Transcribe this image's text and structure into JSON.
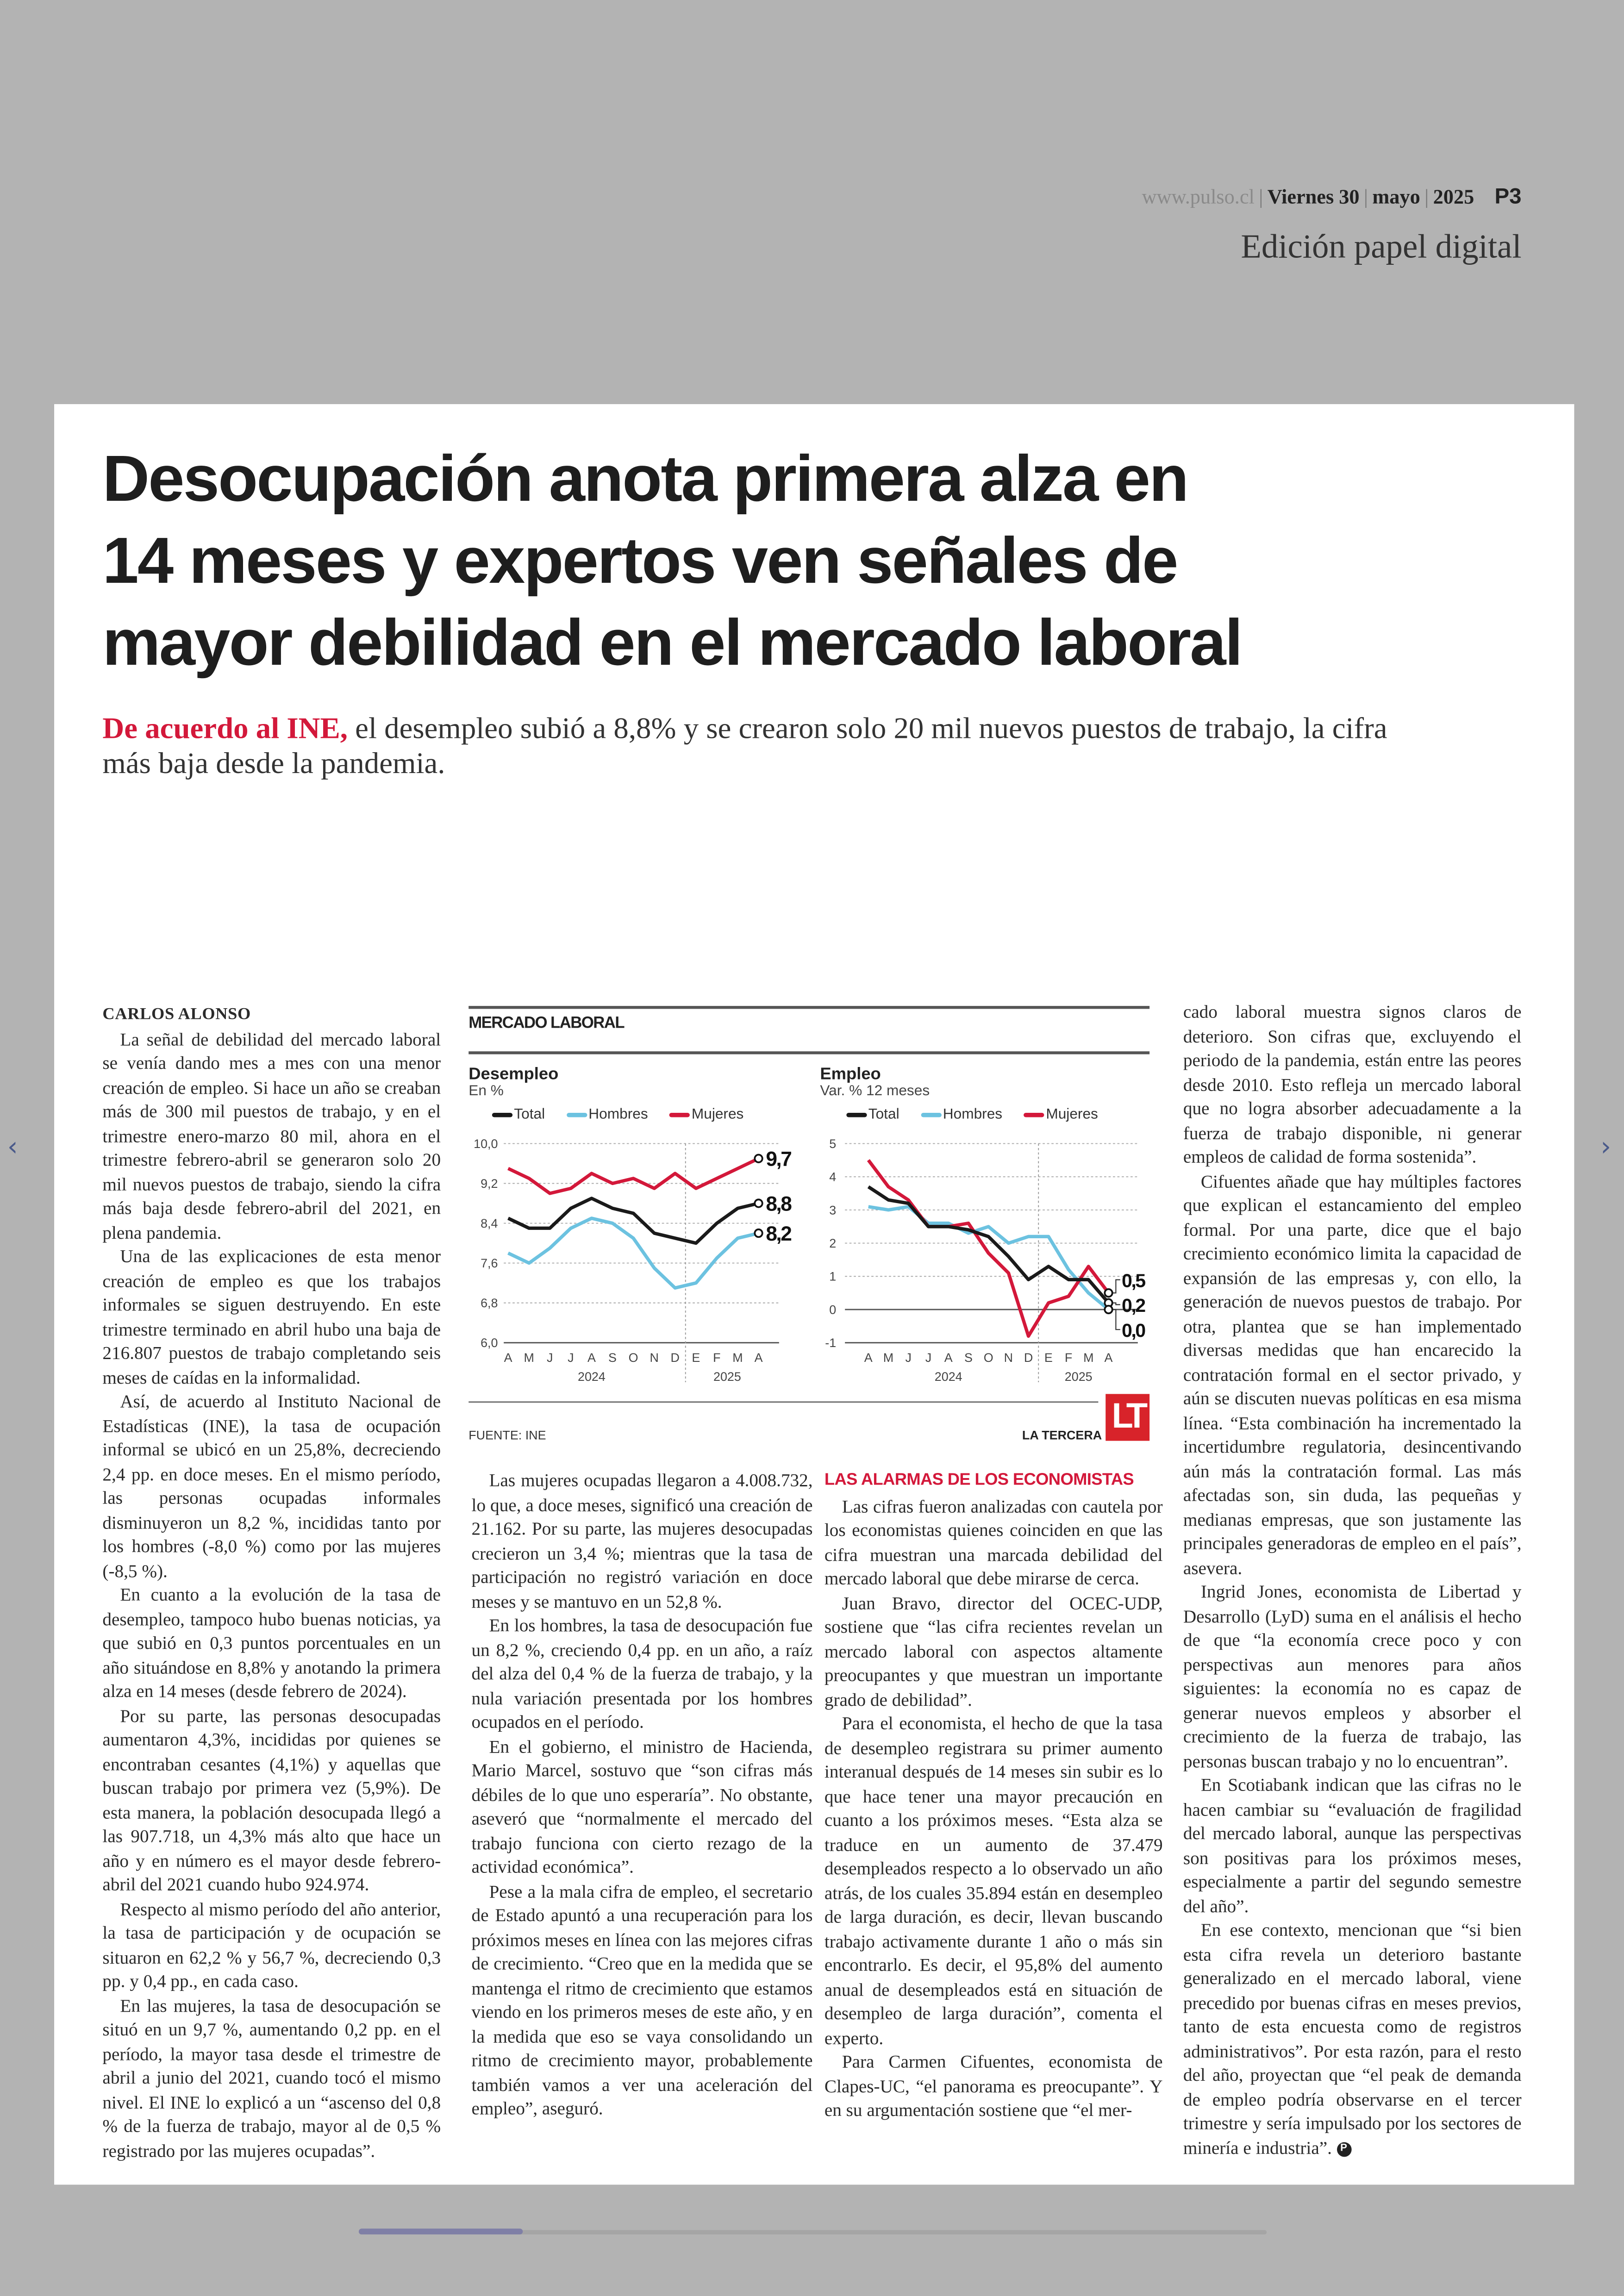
{
  "masthead": {
    "url": "www.pulso.cl",
    "day": "Viernes 30",
    "month": "mayo",
    "year": "2025",
    "page": "P3"
  },
  "edition_label": "Edición papel digital",
  "article": {
    "headline_lines": [
      "Desocupación anota primera alza en",
      "14 meses y expertos ven señales de",
      "mayor debilidad en el mercado laboral"
    ],
    "subhead_lead": "De acuerdo al INE,",
    "subhead_rest": " el desempleo subió a 8,8% y se crearon solo 20 mil nuevos puestos de trabajo, la cifra más baja desde la pandemia.",
    "byline": "CARLOS ALONSO",
    "col1": [
      "La señal de debilidad del mercado laboral se venía dando mes a mes con una menor creación de empleo. Si hace un año se creaban más de 300 mil puestos de trabajo, y en el trimestre enero-marzo 80 mil, ahora en el trimestre febrero-abril se generaron solo 20 mil nuevos puestos de trabajo, siendo la cifra más baja desde febrero-abril del 2021, en plena pandemia.",
      "Una de las explicaciones de esta menor creación de empleo es que los trabajos informales se siguen destruyendo. En este trimestre terminado en abril hubo una baja de 216.807 puestos de trabajo completando seis meses de caídas en la informalidad.",
      "Así, de acuerdo al Instituto Nacional de Estadísticas (INE), la tasa de ocupación informal se ubicó en un 25,8%, decreciendo 2,4 pp. en doce meses. En el mismo período, las personas ocupadas informales disminuyeron un 8,2 %, incididas tanto por los hombres (-8,0 %) como por las mujeres (-8,5 %).",
      "En cuanto a la evolución de la tasa de desempleo, tampoco hubo buenas noticias, ya que subió en 0,3 puntos porcentuales en un año situándose en 8,8% y anotando la primera alza en 14 meses (desde febrero de 2024).",
      "Por su parte, las personas desocupadas aumentaron 4,3%, incididas por quienes se encontraban cesantes (4,1%) y aquellas que buscan trabajo por primera vez (5,9%). De esta manera, la población desocupada llegó a las 907.718, un 4,3% más alto que hace un año y en número es el mayor desde febrero-abril del 2021 cuando hubo 924.974.",
      "Respecto al mismo período del año anterior, la tasa de participación y de ocupación se situaron en 62,2 % y 56,7 %, decreciendo 0,3 pp. y 0,4 pp., en cada caso.",
      "En las mujeres, la tasa de desocupación se situó en un 9,7 %, aumentando 0,2 pp. en el período, la mayor tasa desde el trimestre de abril a junio del 2021, cuando tocó el mismo nivel. El INE lo explicó a un “ascenso del 0,8 % de la fuerza de trabajo, mayor al de 0,5 % registrado por las mujeres ocupadas”."
    ],
    "col2": [
      "Las mujeres ocupadas llegaron a 4.008.732, lo que, a doce meses, significó una creación de 21.162. Por su parte, las mujeres desocupadas crecieron un 3,4 %; mientras que la tasa de participación no registró variación en doce meses y se mantuvo en un 52,8 %.",
      "En los hombres, la tasa de desocupación fue un 8,2 %, creciendo 0,4 pp. en un año, a raíz del alza del 0,4 % de la fuerza de trabajo, y la nula variación presentada por los hombres ocupados en el período.",
      "En el gobierno, el ministro de Hacienda, Mario Marcel, sostuvo que “son cifras más débiles de lo que uno esperaría”. No obstante, aseveró que “normalmente el mercado del trabajo funciona con cierto rezago de la actividad económica”.",
      "Pese a la mala cifra de empleo, el secretario de Estado apuntó a una recuperación para los próximos meses en línea con las mejores cifras de crecimiento. “Creo que en la medida que se mantenga el ritmo de crecimiento que estamos viendo en los primeros meses de este año, y en la medida que eso se vaya consolidando un ritmo de crecimiento mayor, probablemente también vamos a ver una aceleración del empleo”, aseguró."
    ],
    "section_head": "LAS ALARMAS DE LOS ECONOMISTAS",
    "col3": [
      "Las cifras fueron analizadas con cautela por los economistas quienes coinciden en que las cifra muestran una marcada debilidad del mercado laboral que debe mirarse de cerca.",
      "Juan Bravo, director del OCEC-UDP, sostiene que “las cifra recientes revelan un mercado laboral con aspectos altamente preocupantes y que muestran un importante grado de debilidad”.",
      "Para el economista, el hecho de que la tasa de desempleo registrara su primer aumento interanual después de 14 meses sin subir es lo que hace tener una mayor precaución en cuanto a los próximos meses. “Esta alza se traduce en un aumento de 37.479 desempleados respecto a lo observado un año atrás, de los cuales 35.894 están en desempleo de larga duración, es decir, llevan buscando trabajo activamente durante 1 año o más sin encontrarlo. Es decir, el 95,8% del aumento anual de desempleados está en situación de desempleo de larga duración”, comenta el experto.",
      "Para Carmen Cifuentes, economista de Clapes-UC, “el panorama es preocupante”. Y en su argumentación sostiene que “el mer-"
    ],
    "col4_cont": "cado laboral muestra signos claros de deterioro. Son cifras que, excluyendo el periodo de la pandemia, están entre las peores desde 2010. Esto refleja un mercado laboral que no logra absorber adecuadamente a la fuerza de trabajo disponible, ni generar empleos de calidad de forma sostenida”.",
    "col4": [
      "Cifuentes añade que hay múltiples factores que explican el estancamiento del empleo formal. Por una parte, dice que el bajo crecimiento económico limita la capacidad de expansión de las empresas y, con ello, la generación de nuevos puestos de trabajo. Por otra, plantea que se han implementado diversas medidas que han encarecido la contratación formal en el sector privado, y aún se discuten nuevas políticas en esa misma línea. “Esta combinación ha incrementado la incertidumbre regulatoria, desincentivando aún más la contratación formal. Las más afectadas son, sin duda, las pequeñas y medianas empresas, que son justamente las principales generadoras de empleo en el país”, asevera.",
      "Ingrid Jones, economista de Libertad y Desarrollo (LyD) suma en el análisis el hecho de que “la economía crece poco y con perspectivas aun menores para años siguientes: la economía no es capaz de generar nuevos empleos y absorber el crecimiento de la fuerza de trabajo, las personas buscan trabajo y no lo encuentran”.",
      "En Scotiabank indican que las cifras no le hacen cambiar su “evaluación de fragilidad del mercado laboral, aunque las perspectivas son positivas para los próximos meses, especialmente a partir del segundo semestre del año”.",
      "En ese contexto, mencionan que “si bien esta cifra revela un deterioro bastante generalizado en el mercado laboral, viene precedido por buenas cifras en meses previos, tanto de esta encuesta como de registros administrativos”. Por esta razón, para el resto del año, proyectan que “el peak de demanda de empleo podría observarse en el tercer trimestre y sería impulsado por los sectores de minería e industria”."
    ],
    "end_mark": "P"
  },
  "infographic": {
    "title": "MERCADO LABORAL",
    "source": "FUENTE: INE",
    "credit": "LA TERCERA",
    "logo_text": "LT"
  },
  "chart_data": [
    {
      "type": "line",
      "title": "Desempleo",
      "subtitle": "En %",
      "categories": [
        "A",
        "M",
        "J",
        "J",
        "A",
        "S",
        "O",
        "N",
        "D",
        "E",
        "F",
        "M",
        "A"
      ],
      "year_labels": [
        "2024",
        "2025"
      ],
      "ylim": [
        6.0,
        10.0
      ],
      "yticks": [
        "6,0",
        "6,8",
        "7,6",
        "8,4",
        "9,2",
        "10,0"
      ],
      "ytick_values": [
        6.0,
        6.8,
        7.6,
        8.4,
        9.2,
        10.0
      ],
      "grid": true,
      "legend": "top",
      "series": [
        {
          "name": "Total",
          "color": "#1a1a1a",
          "values": [
            8.5,
            8.3,
            8.3,
            8.7,
            8.9,
            8.7,
            8.6,
            8.2,
            8.1,
            8.0,
            8.4,
            8.7,
            8.8
          ],
          "end_label": "8,8"
        },
        {
          "name": "Hombres",
          "color": "#6cc2e0",
          "values": [
            7.8,
            7.6,
            7.9,
            8.3,
            8.5,
            8.4,
            8.1,
            7.5,
            7.1,
            7.2,
            7.7,
            8.1,
            8.2
          ],
          "end_label": "8,2"
        },
        {
          "name": "Mujeres",
          "color": "#d3183a",
          "values": [
            9.5,
            9.3,
            9.0,
            9.1,
            9.4,
            9.2,
            9.3,
            9.1,
            9.4,
            9.1,
            9.3,
            9.5,
            9.7
          ],
          "end_label": "9,7"
        }
      ]
    },
    {
      "type": "line",
      "title": "Empleo",
      "subtitle": "Var. % 12 meses",
      "categories": [
        "A",
        "M",
        "J",
        "J",
        "A",
        "S",
        "O",
        "N",
        "D",
        "E",
        "F",
        "M",
        "A"
      ],
      "year_labels": [
        "2024",
        "2025"
      ],
      "ylim": [
        -1,
        5
      ],
      "yticks": [
        "-1",
        "0",
        "1",
        "2",
        "3",
        "4",
        "5"
      ],
      "ytick_values": [
        -1,
        0,
        1,
        2,
        3,
        4,
        5
      ],
      "grid": true,
      "legend": "top",
      "series": [
        {
          "name": "Total",
          "color": "#1a1a1a",
          "values": [
            3.7,
            3.3,
            3.2,
            2.5,
            2.5,
            2.4,
            2.2,
            1.6,
            0.9,
            1.3,
            0.9,
            0.9,
            0.2
          ],
          "end_label": "0,2"
        },
        {
          "name": "Hombres",
          "color": "#6cc2e0",
          "values": [
            3.1,
            3.0,
            3.1,
            2.6,
            2.6,
            2.3,
            2.5,
            2.0,
            2.2,
            2.2,
            1.2,
            0.5,
            0.0
          ],
          "end_label": "0,0"
        },
        {
          "name": "Mujeres",
          "color": "#d3183a",
          "values": [
            4.5,
            3.7,
            3.3,
            2.5,
            2.5,
            2.6,
            1.7,
            1.1,
            -0.8,
            0.2,
            0.4,
            1.3,
            0.5
          ],
          "end_label": "0,5"
        }
      ]
    }
  ]
}
